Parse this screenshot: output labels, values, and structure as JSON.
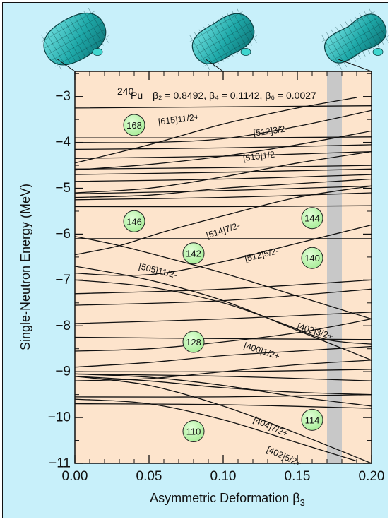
{
  "chart_data": {
    "type": "line",
    "xlabel": "Asymmetric Deformation β",
    "xlabel_sub": "3",
    "ylabel": "Single-Neutron Energy (MeV)",
    "xlim": [
      0.0,
      0.2
    ],
    "ylim": [
      -11.0,
      -2.45
    ],
    "x_ticks": [
      0.0,
      0.05,
      0.1,
      0.15,
      0.2
    ],
    "x_tick_labels": [
      "0.00",
      "0.05",
      "0.10",
      "0.15",
      "0.20"
    ],
    "y_ticks": [
      -3,
      -4,
      -5,
      -6,
      -7,
      -8,
      -9,
      -10,
      -11
    ],
    "y_tick_labels": [
      "−3",
      "−4",
      "−5",
      "−6",
      "−7",
      "−8",
      "−9",
      "−10",
      "−11"
    ],
    "nucleus": {
      "mass": "240",
      "symbol": "Pu"
    },
    "parameters": "β₂ = 0.8492, β₄ = 0.1142, β₆ = 0.0027",
    "shaded_band": {
      "x_from": 0.17,
      "x_to": 0.18,
      "color": "#c8c8c8"
    },
    "colors": {
      "frame_bg": "#c8f0fa",
      "plot_bg": "#fde4cc",
      "magic_fill": "#b4f0a6",
      "shape": "#1fa9a9"
    },
    "shapes_beta3": [
      0.0,
      0.1,
      0.2
    ],
    "magic_numbers": [
      {
        "text": "168",
        "x": 0.04,
        "y": -3.62
      },
      {
        "text": "146",
        "x": 0.04,
        "y": -5.72
      },
      {
        "text": "142",
        "x": 0.08,
        "y": -6.42
      },
      {
        "text": "144",
        "x": 0.16,
        "y": -5.65
      },
      {
        "text": "140",
        "x": 0.16,
        "y": -6.52
      },
      {
        "text": "128",
        "x": 0.08,
        "y": -8.35
      },
      {
        "text": "110",
        "x": 0.08,
        "y": -10.3
      },
      {
        "text": "114",
        "x": 0.16,
        "y": -10.05
      }
    ],
    "level_labels": [
      {
        "text": "[615]11/2+",
        "x": 0.07,
        "y": -3.5,
        "angle": -7
      },
      {
        "text": "[512]3/2-",
        "x": 0.132,
        "y": -3.75,
        "angle": -8
      },
      {
        "text": "[510]1/2-",
        "x": 0.125,
        "y": -4.3,
        "angle": -7
      },
      {
        "text": "[514]7/2-",
        "x": 0.1,
        "y": -5.92,
        "angle": -18
      },
      {
        "text": "[505]11/2-",
        "x": 0.056,
        "y": -6.8,
        "angle": 14
      },
      {
        "text": "[512]5/2-",
        "x": 0.126,
        "y": -6.45,
        "angle": -14
      },
      {
        "text": "[402]3/2+",
        "x": 0.162,
        "y": -8.12,
        "angle": 17
      },
      {
        "text": "[400]1/2+",
        "x": 0.126,
        "y": -8.55,
        "angle": 18
      },
      {
        "text": "[404]7/2+",
        "x": 0.132,
        "y": -10.2,
        "angle": 24
      },
      {
        "text": "[402]5/2+",
        "x": 0.141,
        "y": -10.85,
        "angle": 24
      }
    ],
    "series": [
      {
        "x": [
          0.0,
          0.2
        ],
        "y": [
          -3.25,
          -3.2
        ]
      },
      {
        "x": [
          0.0,
          0.05,
          0.1,
          0.15,
          0.19
        ],
        "y": [
          -4.45,
          -4.05,
          -3.6,
          -3.25,
          -3.02
        ]
      },
      {
        "x": [
          0.0,
          0.1,
          0.2
        ],
        "y": [
          -3.9,
          -3.9,
          -3.88
        ]
      },
      {
        "x": [
          0.0,
          0.05,
          0.1,
          0.15,
          0.2
        ],
        "y": [
          -4.0,
          -4.0,
          -3.92,
          -3.65,
          -3.3
        ]
      },
      {
        "x": [
          0.0,
          0.1,
          0.2
        ],
        "y": [
          -4.15,
          -4.12,
          -4.05
        ]
      },
      {
        "x": [
          0.0,
          0.05,
          0.1,
          0.15,
          0.2
        ],
        "y": [
          -4.6,
          -4.48,
          -4.3,
          -4.05,
          -3.75
        ]
      },
      {
        "x": [
          0.0,
          0.1,
          0.2
        ],
        "y": [
          -4.35,
          -4.3,
          -4.2
        ]
      },
      {
        "x": [
          0.0,
          0.05,
          0.1,
          0.15,
          0.2
        ],
        "y": [
          -5.1,
          -5.0,
          -4.75,
          -4.45,
          -4.2
        ]
      },
      {
        "x": [
          0.0,
          0.1,
          0.2
        ],
        "y": [
          -4.58,
          -4.55,
          -4.5
        ]
      },
      {
        "x": [
          0.0,
          0.1,
          0.2
        ],
        "y": [
          -4.7,
          -4.65,
          -4.58
        ]
      },
      {
        "x": [
          0.0,
          0.1,
          0.2
        ],
        "y": [
          -4.85,
          -4.8,
          -4.7
        ]
      },
      {
        "x": [
          0.0,
          0.05,
          0.1,
          0.15,
          0.2
        ],
        "y": [
          -5.2,
          -5.15,
          -5.0,
          -4.9,
          -4.8
        ]
      },
      {
        "x": [
          0.0,
          0.1,
          0.2
        ],
        "y": [
          -5.12,
          -5.05,
          -4.95
        ]
      },
      {
        "x": [
          0.0,
          0.1,
          0.2
        ],
        "y": [
          -5.25,
          -5.2,
          -5.1
        ]
      },
      {
        "x": [
          0.0,
          0.1,
          0.2
        ],
        "y": [
          -5.4,
          -5.4,
          -5.38
        ]
      },
      {
        "x": [
          0.0,
          0.03,
          0.06,
          0.1,
          0.15,
          0.2
        ],
        "y": [
          -6.45,
          -6.25,
          -5.95,
          -5.6,
          -5.2,
          -4.95
        ]
      },
      {
        "x": [
          0.0,
          0.1,
          0.2
        ],
        "y": [
          -6.1,
          -6.1,
          -6.1
        ]
      },
      {
        "x": [
          0.0,
          0.03,
          0.06,
          0.1,
          0.15,
          0.2
        ],
        "y": [
          -6.05,
          -6.25,
          -6.5,
          -6.85,
          -7.35,
          -7.85
        ]
      },
      {
        "x": [
          0.0,
          0.03,
          0.06,
          0.1,
          0.15,
          0.2
        ],
        "y": [
          -6.85,
          -6.9,
          -6.85,
          -6.6,
          -6.2,
          -5.8
        ]
      },
      {
        "x": [
          0.0,
          0.1,
          0.2
        ],
        "y": [
          -7.3,
          -7.2,
          -7.0
        ]
      },
      {
        "x": [
          0.0,
          0.1,
          0.2
        ],
        "y": [
          -7.55,
          -7.45,
          -7.2
        ]
      },
      {
        "x": [
          0.0,
          0.05,
          0.1,
          0.15,
          0.2
        ],
        "y": [
          -6.7,
          -7.0,
          -7.45,
          -8.1,
          -8.75
        ]
      },
      {
        "x": [
          0.0,
          0.05,
          0.1,
          0.14,
          0.17,
          0.2
        ],
        "y": [
          -7.0,
          -7.15,
          -7.5,
          -7.95,
          -8.3,
          -8.4
        ]
      },
      {
        "x": [
          0.0,
          0.1,
          0.2
        ],
        "y": [
          -7.95,
          -7.85,
          -7.7
        ]
      },
      {
        "x": [
          0.0,
          0.05,
          0.1,
          0.15,
          0.2
        ],
        "y": [
          -8.55,
          -8.5,
          -8.35,
          -8.15,
          -7.85
        ]
      },
      {
        "x": [
          0.0,
          0.1,
          0.2
        ],
        "y": [
          -8.25,
          -8.28,
          -8.3
        ]
      },
      {
        "x": [
          0.0,
          0.05,
          0.1,
          0.15,
          0.2
        ],
        "y": [
          -8.9,
          -8.8,
          -8.65,
          -8.55,
          -8.45
        ]
      },
      {
        "x": [
          0.0,
          0.1,
          0.2
        ],
        "y": [
          -9.0,
          -9.0,
          -8.95
        ]
      },
      {
        "x": [
          0.0,
          0.05,
          0.1,
          0.15,
          0.2
        ],
        "y": [
          -9.2,
          -9.15,
          -9.0,
          -8.85,
          -8.75
        ]
      },
      {
        "x": [
          0.0,
          0.1,
          0.2
        ],
        "y": [
          -9.05,
          -9.1,
          -9.2
        ]
      },
      {
        "x": [
          0.0,
          0.05,
          0.1,
          0.15,
          0.2
        ],
        "y": [
          -9.1,
          -9.2,
          -9.35,
          -9.45,
          -9.5
        ]
      },
      {
        "x": [
          0.0,
          0.05,
          0.1,
          0.15,
          0.2
        ],
        "y": [
          -9.05,
          -9.12,
          -9.3,
          -9.55,
          -9.75
        ]
      },
      {
        "x": [
          0.0,
          0.1,
          0.2
        ],
        "y": [
          -9.55,
          -9.55,
          -9.5
        ]
      },
      {
        "x": [
          0.0,
          0.1,
          0.2
        ],
        "y": [
          -9.7,
          -9.72,
          -9.8
        ]
      },
      {
        "x": [
          0.0,
          0.05,
          0.1,
          0.15,
          0.2
        ],
        "y": [
          -9.1,
          -9.3,
          -9.75,
          -10.35,
          -11.0
        ]
      },
      {
        "x": [
          0.0,
          0.05,
          0.1,
          0.15,
          0.19
        ],
        "y": [
          -9.6,
          -9.7,
          -10.05,
          -10.55,
          -10.95
        ]
      }
    ]
  }
}
